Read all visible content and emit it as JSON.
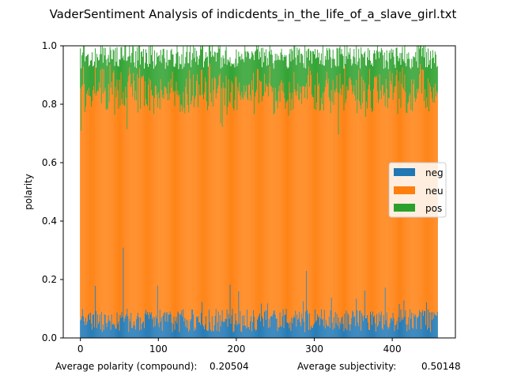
{
  "chart_data": {
    "type": "bar",
    "stacked": true,
    "title": "VaderSentiment Analysis of indicdents_in_the_life_of_a_slave_girl.txt",
    "xlabel": "",
    "ylabel": "polarity",
    "xlim": [
      -22,
      481
    ],
    "ylim": [
      0,
      1
    ],
    "xticks": [
      0,
      100,
      200,
      300,
      400
    ],
    "yticks": [
      0.0,
      0.2,
      0.4,
      0.6,
      0.8,
      1.0
    ],
    "ytick_labels": [
      "0.0",
      "0.2",
      "0.4",
      "0.6",
      "0.8",
      "1.0"
    ],
    "n_bars": 459,
    "series": [
      {
        "name": "neg",
        "color": "#1f77b4",
        "mean": 0.06,
        "samples_x": [
          0,
          25,
          55,
          60,
          100,
          150,
          200,
          250,
          290,
          300,
          350,
          400,
          458
        ],
        "samples_y": [
          0.06,
          0.08,
          0.31,
          0.1,
          0.05,
          0.07,
          0.06,
          0.08,
          0.23,
          0.05,
          0.09,
          0.06,
          0.09
        ]
      },
      {
        "name": "neu",
        "color": "#ff7f0e",
        "mean": 0.76
      },
      {
        "name": "pos",
        "color": "#2ca02c",
        "mean": 0.12
      }
    ],
    "legend": {
      "position": "center-right",
      "entries": [
        "neg",
        "neu",
        "pos"
      ]
    },
    "footer": {
      "polarity_label": "Average polarity (compound):",
      "polarity_value": "0.20504",
      "subjectivity_label": "Average subjectivity:",
      "subjectivity_value": "0.50148"
    }
  }
}
